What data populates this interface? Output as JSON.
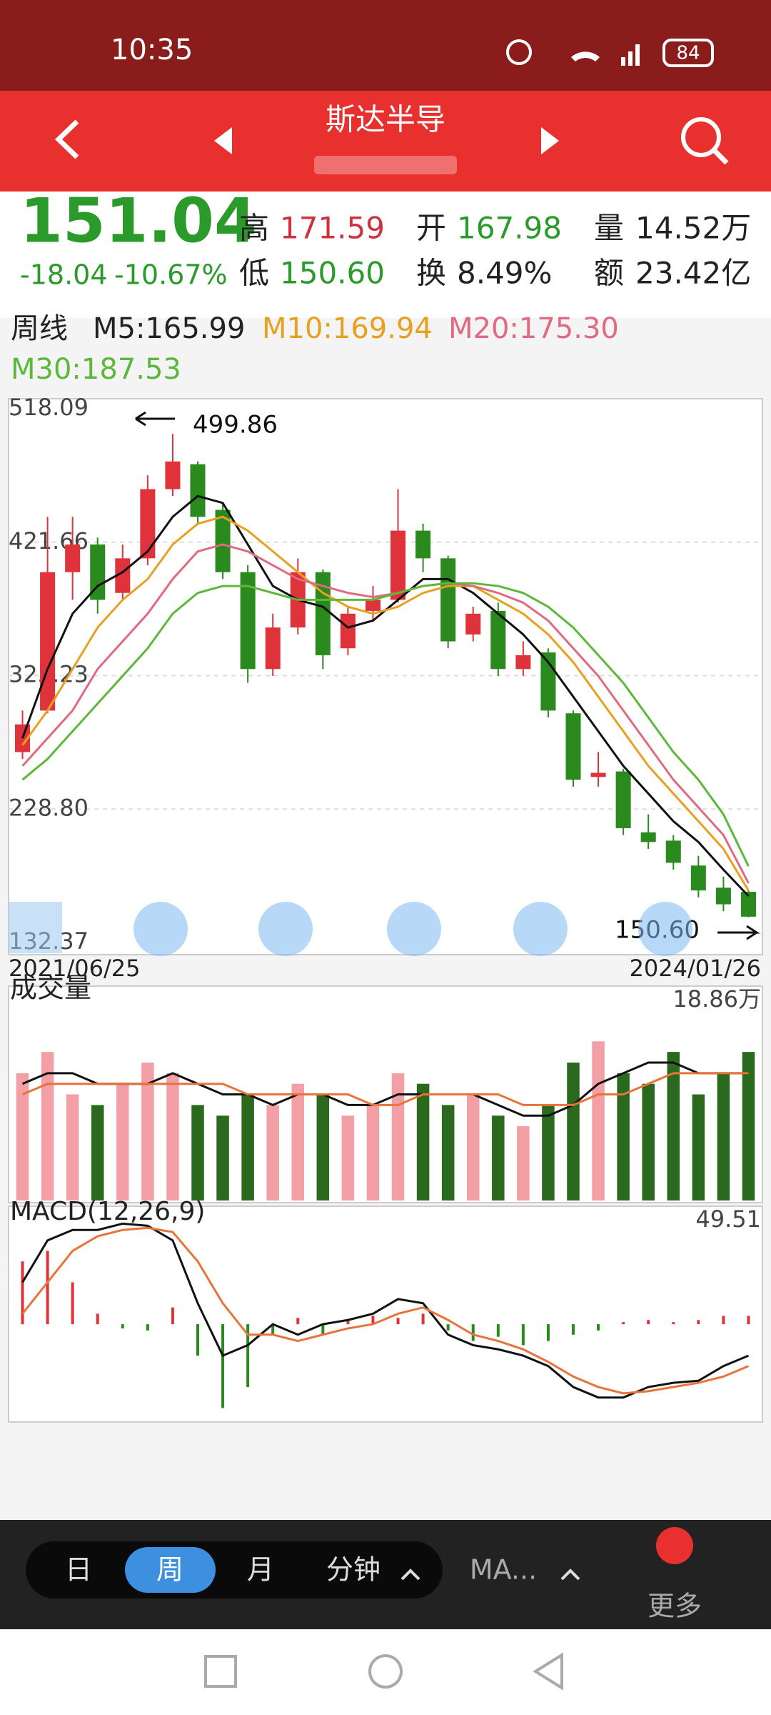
{
  "status": {
    "time": "10:35",
    "battery": "84"
  },
  "header": {
    "title": "斯达半导"
  },
  "quote": {
    "price": "151.04",
    "change": "-18.04",
    "change_pct": "-10.67%",
    "high_label": "高",
    "high": "171.59",
    "open_label": "开",
    "open": "167.98",
    "vol_label": "量",
    "vol": "14.52万",
    "low_label": "低",
    "low": "150.60",
    "turnover_label": "换",
    "turnover": "8.49%",
    "amount_label": "额",
    "amount": "23.42亿"
  },
  "ma_legend": {
    "period": "周线",
    "m5": "M5:165.99",
    "m10": "M10:169.94",
    "m20": "M20:175.30",
    "m30": "M30:187.53"
  },
  "chart_data": [
    {
      "type": "candlestick",
      "x_start": "2021/06/25",
      "x_end": "2024/01/26",
      "max_note": "499.86",
      "min_note": "150.60",
      "ylim": [
        132.37,
        518.09
      ],
      "yticks": [
        132.37,
        228.8,
        325.23,
        421.66,
        518.09
      ],
      "ytick_labels": [
        "132.37",
        "228.80",
        "325.23",
        "421.66",
        "518.09"
      ],
      "up_color": "#e0323a",
      "down_color": "#2b8a1e",
      "open": [
        270,
        300,
        400,
        420,
        385,
        410,
        460,
        478,
        445,
        400,
        330,
        360,
        400,
        345,
        372,
        380,
        430,
        410,
        355,
        372,
        330,
        342,
        298,
        252,
        256,
        212,
        206,
        188,
        172,
        169
      ],
      "high": [
        300,
        440,
        440,
        425,
        420,
        470,
        499.86,
        480,
        450,
        405,
        370,
        410,
        402,
        375,
        390,
        460,
        435,
        412,
        375,
        378,
        350,
        345,
        300,
        270,
        258,
        225,
        210,
        195,
        180,
        170
      ],
      "low": [
        265,
        298,
        380,
        370,
        380,
        405,
        455,
        435,
        395,
        320,
        325,
        355,
        330,
        340,
        365,
        378,
        400,
        345,
        350,
        325,
        325,
        295,
        245,
        245,
        210,
        200,
        185,
        165,
        155,
        150.6
      ],
      "close": [
        290,
        400,
        420,
        380,
        410,
        460,
        480,
        440,
        400,
        330,
        360,
        400,
        340,
        370,
        380,
        430,
        410,
        350,
        370,
        330,
        340,
        300,
        250,
        255,
        215,
        205,
        190,
        170,
        160,
        151.04
      ],
      "series": [
        {
          "name": "M5",
          "color": "#111111",
          "values": [
            280,
            330,
            370,
            390,
            400,
            415,
            440,
            455,
            450,
            420,
            390,
            380,
            375,
            360,
            365,
            380,
            395,
            395,
            385,
            370,
            355,
            335,
            310,
            285,
            260,
            240,
            220,
            205,
            185,
            165.99
          ]
        },
        {
          "name": "M10",
          "color": "#e8a020",
          "values": [
            275,
            300,
            330,
            360,
            380,
            395,
            420,
            435,
            440,
            430,
            415,
            400,
            385,
            375,
            370,
            375,
            385,
            390,
            390,
            380,
            370,
            355,
            335,
            310,
            285,
            260,
            240,
            220,
            200,
            169.94
          ]
        },
        {
          "name": "M20",
          "color": "#e06a80",
          "values": [
            260,
            280,
            300,
            330,
            350,
            370,
            395,
            415,
            420,
            415,
            405,
            395,
            390,
            385,
            382,
            385,
            390,
            392,
            390,
            385,
            378,
            365,
            345,
            325,
            300,
            275,
            250,
            230,
            210,
            175.3
          ]
        },
        {
          "name": "M30",
          "color": "#5cb83a",
          "values": [
            250,
            265,
            285,
            305,
            325,
            345,
            370,
            385,
            390,
            390,
            385,
            380,
            380,
            380,
            380,
            385,
            390,
            392,
            392,
            390,
            385,
            375,
            360,
            340,
            320,
            295,
            270,
            250,
            225,
            187.53
          ]
        }
      ]
    },
    {
      "type": "volume",
      "title": "成交量",
      "ylim": [
        0,
        18.86
      ],
      "yticks": [
        {
          "value": 18.86,
          "label": "18.86万"
        }
      ],
      "values": [
        12,
        14,
        10,
        9,
        11,
        13,
        12,
        9,
        8,
        10,
        9,
        11,
        10,
        8,
        9,
        12,
        11,
        9,
        10,
        8,
        7,
        9,
        13,
        15,
        12,
        11,
        14,
        10,
        12,
        14
      ],
      "series": [
        {
          "name": "MA5",
          "color": "#111111",
          "values": [
            11,
            12,
            12,
            11,
            11,
            11,
            12,
            11,
            10,
            10,
            9,
            10,
            10,
            9,
            9,
            10,
            10,
            10,
            10,
            9,
            8,
            8,
            9,
            11,
            12,
            13,
            13,
            12,
            12,
            12
          ]
        },
        {
          "name": "MA10",
          "color": "#e8743a",
          "values": [
            10,
            11,
            11,
            11,
            11,
            11,
            11,
            11,
            11,
            10,
            10,
            10,
            10,
            10,
            9,
            9,
            10,
            10,
            10,
            10,
            9,
            9,
            9,
            10,
            10,
            11,
            12,
            12,
            12,
            12
          ]
        }
      ]
    },
    {
      "type": "macd",
      "title": "MACD(12,26,9)",
      "ylim": [
        -45,
        49.51
      ],
      "yticks": [
        49.51
      ],
      "values": [
        30,
        35,
        20,
        5,
        -2,
        -3,
        8,
        -15,
        -40,
        -30,
        -5,
        3,
        -5,
        2,
        4,
        3,
        5,
        -3,
        -8,
        -6,
        -10,
        -8,
        -5,
        -3,
        1,
        2,
        1,
        2,
        4,
        4
      ],
      "series": [
        {
          "name": "DIF",
          "color": "#111111",
          "values": [
            20,
            40,
            45,
            45,
            48,
            47,
            40,
            10,
            -15,
            -10,
            0,
            -5,
            0,
            2,
            5,
            12,
            10,
            -5,
            -10,
            -12,
            -15,
            -20,
            -30,
            -35,
            -35,
            -30,
            -28,
            -27,
            -20,
            -15
          ]
        },
        {
          "name": "DEA",
          "color": "#e8743a",
          "values": [
            5,
            20,
            35,
            42,
            45,
            46,
            44,
            30,
            10,
            -5,
            -5,
            -8,
            -5,
            -2,
            0,
            5,
            8,
            2,
            -5,
            -8,
            -12,
            -18,
            -25,
            -30,
            -33,
            -32,
            -30,
            -28,
            -25,
            -20
          ]
        }
      ]
    }
  ],
  "toolbar": {
    "day": "日",
    "week": "周",
    "month": "月",
    "minute": "分钟",
    "ma": "MA...",
    "more": "更多"
  }
}
